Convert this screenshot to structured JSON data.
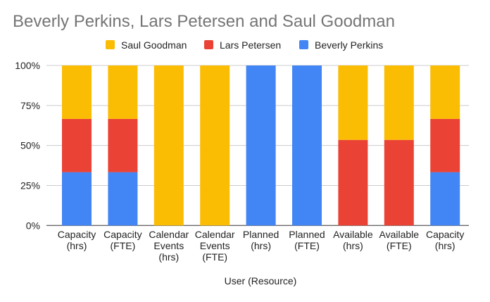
{
  "chart_data": {
    "type": "bar",
    "stacked": "percent",
    "title": "Beverly Perkins, Lars Petersen and Saul Goodman",
    "xlabel": "User (Resource)",
    "ylabel": "",
    "ylim": [
      0,
      100
    ],
    "yticks": [
      "0%",
      "25%",
      "50%",
      "75%",
      "100%"
    ],
    "grid": true,
    "legend": "top",
    "categories": [
      [
        "Capacity",
        "(hrs)"
      ],
      [
        "Capacity",
        "(FTE)"
      ],
      [
        "Calendar",
        "Events",
        "(hrs)"
      ],
      [
        "Calendar",
        "Events",
        "(FTE)"
      ],
      [
        "Planned",
        "(hrs)"
      ],
      [
        "Planned",
        "(FTE)"
      ],
      [
        "Available",
        "(hrs)"
      ],
      [
        "Available",
        "(FTE)"
      ],
      [
        "Capacity",
        "(hrs)"
      ]
    ],
    "series": [
      {
        "name": "Beverly Perkins",
        "color": "#4285f4",
        "values": [
          33.3,
          33.3,
          0,
          0,
          100,
          100,
          0,
          0,
          33.3
        ]
      },
      {
        "name": "Lars Petersen",
        "color": "#ea4335",
        "values": [
          33.3,
          33.3,
          0,
          0,
          0,
          0,
          53.5,
          53.5,
          33.3
        ]
      },
      {
        "name": "Saul Goodman",
        "color": "#fbbc04",
        "values": [
          33.4,
          33.4,
          100,
          100,
          0,
          0,
          46.5,
          46.5,
          33.4
        ]
      }
    ],
    "legend_order": [
      "Saul Goodman",
      "Lars Petersen",
      "Beverly Perkins"
    ]
  }
}
